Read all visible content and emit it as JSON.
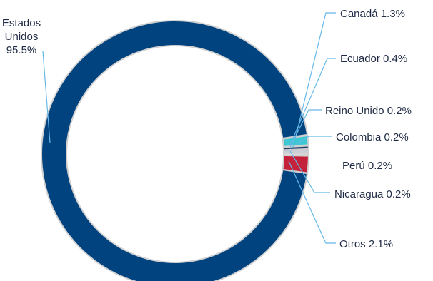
{
  "chart_data": {
    "type": "pie",
    "variant": "donut",
    "title": "",
    "slices": [
      {
        "label": "Estados Unidos",
        "value": 95.5,
        "display": "Estados Unidos 95.5%",
        "color": "#00437F"
      },
      {
        "label": "Canadá",
        "value": 1.3,
        "display": "Canadá 1.3%",
        "color": "#3EC8D3"
      },
      {
        "label": "Ecuador",
        "value": 0.4,
        "display": "Ecuador 0.4%",
        "color": "#1C3D6B"
      },
      {
        "label": "Reino Unido",
        "value": 0.2,
        "display": "Reino Unido 0.2%",
        "color": "#A9B6C6"
      },
      {
        "label": "Colombia",
        "value": 0.2,
        "display": "Colombia 0.2%",
        "color": "#C7D1DD"
      },
      {
        "label": "Perú",
        "value": 0.2,
        "display": "Perú 0.2%",
        "color": "#D9D9D9"
      },
      {
        "label": "Nicaragua",
        "value": 0.2,
        "display": "Nicaragua 0.2%",
        "color": "#E6E6E6"
      },
      {
        "label": "Otros",
        "value": 2.1,
        "display": "Otros 2.1%",
        "color": "#C4213A"
      }
    ],
    "label_line_color": "#66B8E8",
    "separator_color": "#D0D0D0"
  }
}
